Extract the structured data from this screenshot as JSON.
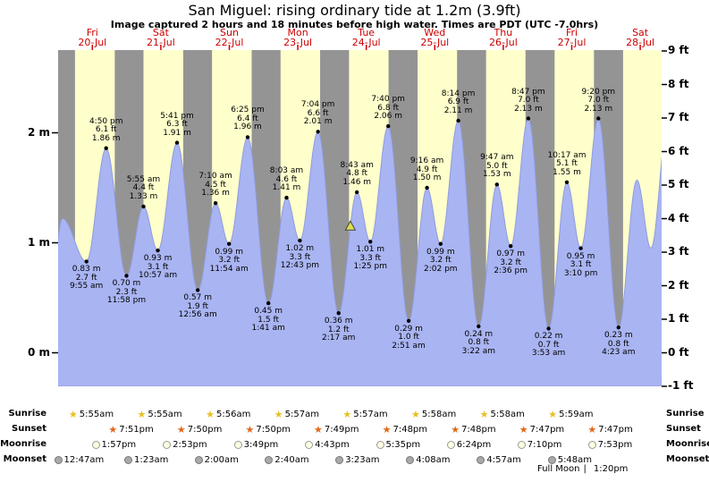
{
  "title": "San Miguel: rising  ordinary tide at 1.2m (3.9ft)",
  "subtitle": "Image captured 2 hours and 18 minutes before high water. Times are PDT (UTC -7.0hrs)",
  "colors": {
    "night_band": "#949494",
    "day_band": "#ffffcc",
    "tide_fill": "#a9b4f2",
    "tide_stroke": "#8f9ce0",
    "date_red": "#cc0000",
    "tick_black": "#000000",
    "marker_fill": "#dede50",
    "marker_stroke": "#444444",
    "sunrise_star": "#e8c020",
    "sunset_star": "#e06818",
    "moonrise_fill": "#ffffe0",
    "moonrise_border": "#999999",
    "moonset_fill": "#a9a9a9",
    "moonset_border": "#777777"
  },
  "rows": {
    "sunrise": "Sunrise",
    "sunset": "Sunset",
    "moonrise": "Moonrise",
    "moonset": "Moonset"
  },
  "full_moon": {
    "label": "Full Moon",
    "divider": "|",
    "time": "1:20pm"
  },
  "days": [
    {
      "dow": "Fri",
      "date": "20-Jul",
      "sunrise": "5:55am",
      "sunset": "7:51pm",
      "moonrise": "1:57pm",
      "moonset": "12:47am"
    },
    {
      "dow": "Sat",
      "date": "21-Jul",
      "sunrise": "5:55am",
      "sunset": "7:50pm",
      "moonrise": "2:53pm",
      "moonset": "1:23am"
    },
    {
      "dow": "Sun",
      "date": "22-Jul",
      "sunrise": "5:56am",
      "sunset": "7:50pm",
      "moonrise": "3:49pm",
      "moonset": "2:00am"
    },
    {
      "dow": "Mon",
      "date": "23-Jul",
      "sunrise": "5:57am",
      "sunset": "7:49pm",
      "moonrise": "4:43pm",
      "moonset": "2:40am"
    },
    {
      "dow": "Tue",
      "date": "24-Jul",
      "sunrise": "5:57am",
      "sunset": "7:48pm",
      "moonrise": "5:35pm",
      "moonset": "3:23am"
    },
    {
      "dow": "Wed",
      "date": "25-Jul",
      "sunrise": "5:58am",
      "sunset": "7:48pm",
      "moonrise": "6:24pm",
      "moonset": "4:08am"
    },
    {
      "dow": "Thu",
      "date": "26-Jul",
      "sunrise": "5:58am",
      "sunset": "7:47pm",
      "moonrise": "7:10pm",
      "moonset": "4:57am"
    },
    {
      "dow": "Fri",
      "date": "27-Jul",
      "sunrise": "5:59am",
      "sunset": "7:47pm",
      "moonrise": "7:53pm",
      "moonset": "5:48am"
    },
    {
      "dow": "Sat",
      "date": "28-Jul"
    }
  ],
  "chart_data": {
    "type": "area",
    "title": "San Miguel tide heights, 20-Jul to 28-Jul",
    "unit_m": "m",
    "unit_ft": "ft",
    "y_axis_left": {
      "ticks": [
        "2 m",
        "1 m",
        "0 m"
      ]
    },
    "y_axis_right": {
      "ticks": [
        "9 ft",
        "8 ft",
        "7 ft",
        "6 ft",
        "5 ft",
        "4 ft",
        "3 ft",
        "2 ft",
        "1 ft",
        "0 ft",
        "-1 ft"
      ]
    },
    "tide_points": [
      {
        "day": 0,
        "time": "9:55 am",
        "m": 0.83,
        "ft": 2.7,
        "type": "low"
      },
      {
        "day": 0,
        "time": "4:50 pm",
        "m": 1.86,
        "ft": 6.1,
        "type": "high"
      },
      {
        "day": 0,
        "time": "11:58 pm",
        "m": 0.7,
        "ft": 2.3,
        "type": "low"
      },
      {
        "day": 1,
        "time": "5:55 am",
        "m": 1.33,
        "ft": 4.4,
        "type": "high"
      },
      {
        "day": 1,
        "time": "10:57 am",
        "m": 0.93,
        "ft": 3.1,
        "type": "low"
      },
      {
        "day": 1,
        "time": "5:41 pm",
        "m": 1.91,
        "ft": 6.3,
        "type": "high"
      },
      {
        "day": 2,
        "time": "12:56 am",
        "m": 0.57,
        "ft": 1.9,
        "type": "low"
      },
      {
        "day": 2,
        "time": "7:10 am",
        "m": 1.36,
        "ft": 4.5,
        "type": "high"
      },
      {
        "day": 2,
        "time": "11:54 am",
        "m": 0.99,
        "ft": 3.2,
        "type": "low"
      },
      {
        "day": 2,
        "time": "6:25 pm",
        "m": 1.96,
        "ft": 6.4,
        "type": "high"
      },
      {
        "day": 3,
        "time": "1:41 am",
        "m": 0.45,
        "ft": 1.5,
        "type": "low"
      },
      {
        "day": 3,
        "time": "8:03 am",
        "m": 1.41,
        "ft": 4.6,
        "type": "high"
      },
      {
        "day": 3,
        "time": "12:43 pm",
        "m": 1.02,
        "ft": 3.3,
        "type": "low"
      },
      {
        "day": 3,
        "time": "7:04 pm",
        "m": 2.01,
        "ft": 6.6,
        "type": "high"
      },
      {
        "day": 4,
        "time": "2:17 am",
        "m": 0.36,
        "ft": 1.2,
        "type": "low"
      },
      {
        "day": 4,
        "time": "8:43 am",
        "m": 1.46,
        "ft": 4.8,
        "type": "high"
      },
      {
        "day": 4,
        "time": "1:25 pm",
        "m": 1.01,
        "ft": 3.3,
        "type": "low"
      },
      {
        "day": 4,
        "time": "7:40 pm",
        "m": 2.06,
        "ft": 6.8,
        "type": "high"
      },
      {
        "day": 5,
        "time": "2:51 am",
        "m": 0.29,
        "ft": 1.0,
        "type": "low"
      },
      {
        "day": 5,
        "time": "9:16 am",
        "m": 1.5,
        "ft": 4.9,
        "type": "high"
      },
      {
        "day": 5,
        "time": "2:02 pm",
        "m": 0.99,
        "ft": 3.2,
        "type": "low"
      },
      {
        "day": 5,
        "time": "8:14 pm",
        "m": 2.11,
        "ft": 6.9,
        "type": "high"
      },
      {
        "day": 6,
        "time": "3:22 am",
        "m": 0.24,
        "ft": 0.8,
        "type": "low"
      },
      {
        "day": 6,
        "time": "9:47 am",
        "m": 1.53,
        "ft": 5.0,
        "type": "high"
      },
      {
        "day": 6,
        "time": "2:36 pm",
        "m": 0.97,
        "ft": 3.2,
        "type": "low"
      },
      {
        "day": 6,
        "time": "8:47 pm",
        "m": 2.13,
        "ft": 7.0,
        "type": "high"
      },
      {
        "day": 7,
        "time": "3:53 am",
        "m": 0.22,
        "ft": 0.7,
        "type": "low"
      },
      {
        "day": 7,
        "time": "10:17 am",
        "m": 1.55,
        "ft": 5.1,
        "type": "high"
      },
      {
        "day": 7,
        "time": "3:10 pm",
        "m": 0.95,
        "ft": 3.1,
        "type": "low"
      },
      {
        "day": 7,
        "time": "9:20 pm",
        "m": 2.13,
        "ft": 7.0,
        "type": "high"
      },
      {
        "day": 8,
        "time": "4:23 am",
        "m": 0.23,
        "ft": 0.8,
        "type": "low"
      }
    ],
    "lead_in": [
      {
        "day": -1,
        "time": "9:00 pm",
        "m": 0.5
      },
      {
        "day": 0,
        "time": "1:30 am",
        "m": 1.22
      }
    ],
    "lead_out": [
      {
        "day": 8,
        "time": "10:50 am",
        "m": 1.57
      },
      {
        "day": 8,
        "time": "3:45 pm",
        "m": 0.95
      },
      {
        "day": 8,
        "time": "9:55 pm",
        "m": 2.15
      }
    ],
    "current_marker": {
      "day": 4,
      "time": "6:25 am"
    }
  }
}
